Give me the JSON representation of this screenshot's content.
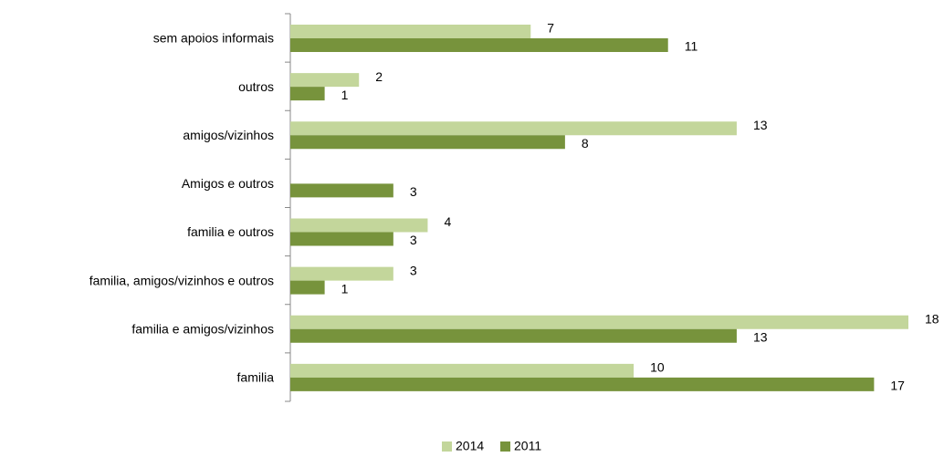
{
  "chart_data": {
    "type": "bar",
    "orientation": "horizontal",
    "categories": [
      "sem apoios informais",
      "outros",
      "amigos/vizinhos",
      "Amigos e outros",
      "familia e outros",
      "familia, amigos/vizinhos e outros",
      "familia e amigos/vizinhos",
      "familia"
    ],
    "series": [
      {
        "name": "2014",
        "color": "#c3d69b",
        "values": [
          7,
          2,
          13,
          null,
          4,
          3,
          18,
          10
        ]
      },
      {
        "name": "2011",
        "color": "#77933c",
        "values": [
          11,
          1,
          8,
          3,
          3,
          1,
          13,
          17
        ]
      }
    ],
    "xlim": [
      0,
      18
    ],
    "legend": "bottom"
  }
}
